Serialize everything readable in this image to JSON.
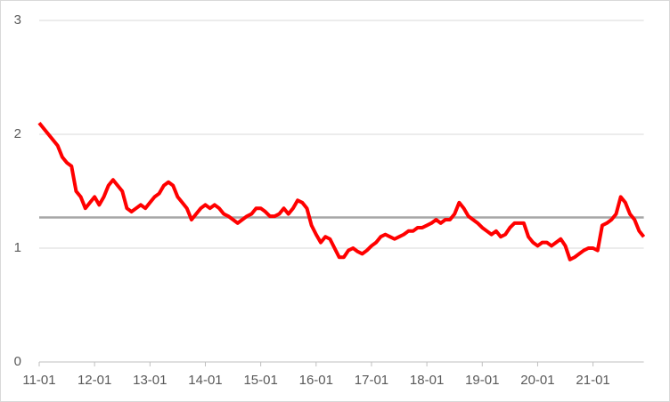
{
  "chart_data": {
    "type": "line",
    "categories": [
      "11-01",
      null,
      null,
      null,
      null,
      null,
      null,
      null,
      null,
      null,
      null,
      null,
      "12-01",
      null,
      null,
      null,
      null,
      null,
      null,
      null,
      null,
      null,
      null,
      null,
      "13-01",
      null,
      null,
      null,
      null,
      null,
      null,
      null,
      null,
      null,
      null,
      null,
      "14-01",
      null,
      null,
      null,
      null,
      null,
      null,
      null,
      null,
      null,
      null,
      null,
      "15-01",
      null,
      null,
      null,
      null,
      null,
      null,
      null,
      null,
      null,
      null,
      null,
      "16-01",
      null,
      null,
      null,
      null,
      null,
      null,
      null,
      null,
      null,
      null,
      null,
      "17-01",
      null,
      null,
      null,
      null,
      null,
      null,
      null,
      null,
      null,
      null,
      null,
      "18-01",
      null,
      null,
      null,
      null,
      null,
      null,
      null,
      null,
      null,
      null,
      null,
      "19-01",
      null,
      null,
      null,
      null,
      null,
      null,
      null,
      null,
      null,
      null,
      null,
      "20-01",
      null,
      null,
      null,
      null,
      null,
      null,
      null,
      null,
      null,
      null,
      null,
      "21-01",
      null,
      null,
      null,
      null,
      null,
      null,
      null,
      null,
      null,
      null,
      null
    ],
    "series": [
      {
        "color": "#ff0000",
        "values": [
          2.1,
          2.05,
          2.0,
          1.95,
          1.9,
          1.8,
          1.75,
          1.72,
          1.5,
          1.45,
          1.35,
          1.4,
          1.45,
          1.38,
          1.45,
          1.55,
          1.6,
          1.55,
          1.5,
          1.35,
          1.32,
          1.35,
          1.38,
          1.35,
          1.4,
          1.45,
          1.48,
          1.55,
          1.58,
          1.55,
          1.45,
          1.4,
          1.35,
          1.25,
          1.3,
          1.35,
          1.38,
          1.35,
          1.38,
          1.35,
          1.3,
          1.28,
          1.25,
          1.22,
          1.25,
          1.28,
          1.3,
          1.35,
          1.35,
          1.32,
          1.28,
          1.28,
          1.3,
          1.35,
          1.3,
          1.35,
          1.42,
          1.4,
          1.35,
          1.2,
          1.12,
          1.05,
          1.1,
          1.08,
          1.0,
          0.92,
          0.92,
          0.98,
          1.0,
          0.97,
          0.95,
          0.98,
          1.02,
          1.05,
          1.1,
          1.12,
          1.1,
          1.08,
          1.1,
          1.12,
          1.15,
          1.15,
          1.18,
          1.18,
          1.2,
          1.22,
          1.25,
          1.22,
          1.25,
          1.25,
          1.3,
          1.4,
          1.35,
          1.28,
          1.25,
          1.22,
          1.18,
          1.15,
          1.12,
          1.15,
          1.1,
          1.12,
          1.18,
          1.22,
          1.22,
          1.22,
          1.1,
          1.05,
          1.02,
          1.05,
          1.05,
          1.02,
          1.05,
          1.08,
          1.02,
          0.9,
          0.92,
          0.95,
          0.98,
          1.0,
          1.0,
          0.98,
          1.2,
          1.22,
          1.25,
          1.3,
          1.45,
          1.4,
          1.3,
          1.25,
          1.15,
          1.1
        ]
      },
      {
        "color": "#a6a6a6",
        "values": [
          1.27,
          1.27,
          1.27,
          1.27,
          1.27,
          1.27,
          1.27,
          1.27,
          1.27,
          1.27,
          1.27,
          1.27,
          1.27,
          1.27,
          1.27,
          1.27,
          1.27,
          1.27,
          1.27,
          1.27,
          1.27,
          1.27,
          1.27,
          1.27,
          1.27,
          1.27,
          1.27,
          1.27,
          1.27,
          1.27,
          1.27,
          1.27,
          1.27,
          1.27,
          1.27,
          1.27,
          1.27,
          1.27,
          1.27,
          1.27,
          1.27,
          1.27,
          1.27,
          1.27,
          1.27,
          1.27,
          1.27,
          1.27,
          1.27,
          1.27,
          1.27,
          1.27,
          1.27,
          1.27,
          1.27,
          1.27,
          1.27,
          1.27,
          1.27,
          1.27,
          1.27,
          1.27,
          1.27,
          1.27,
          1.27,
          1.27,
          1.27,
          1.27,
          1.27,
          1.27,
          1.27,
          1.27,
          1.27,
          1.27,
          1.27,
          1.27,
          1.27,
          1.27,
          1.27,
          1.27,
          1.27,
          1.27,
          1.27,
          1.27,
          1.27,
          1.27,
          1.27,
          1.27,
          1.27,
          1.27,
          1.27,
          1.27,
          1.27,
          1.27,
          1.27,
          1.27,
          1.27,
          1.27,
          1.27,
          1.27,
          1.27,
          1.27,
          1.27,
          1.27,
          1.27,
          1.27,
          1.27,
          1.27,
          1.27,
          1.27,
          1.27,
          1.27,
          1.27,
          1.27,
          1.27,
          1.27,
          1.27,
          1.27,
          1.27,
          1.27,
          1.27,
          1.27,
          1.27,
          1.27,
          1.27,
          1.27,
          1.27,
          1.27,
          1.27,
          1.27,
          1.27,
          1.27
        ]
      }
    ],
    "ylim": [
      0,
      3
    ],
    "yticks": [
      0,
      1,
      2,
      3
    ],
    "grid": true
  }
}
